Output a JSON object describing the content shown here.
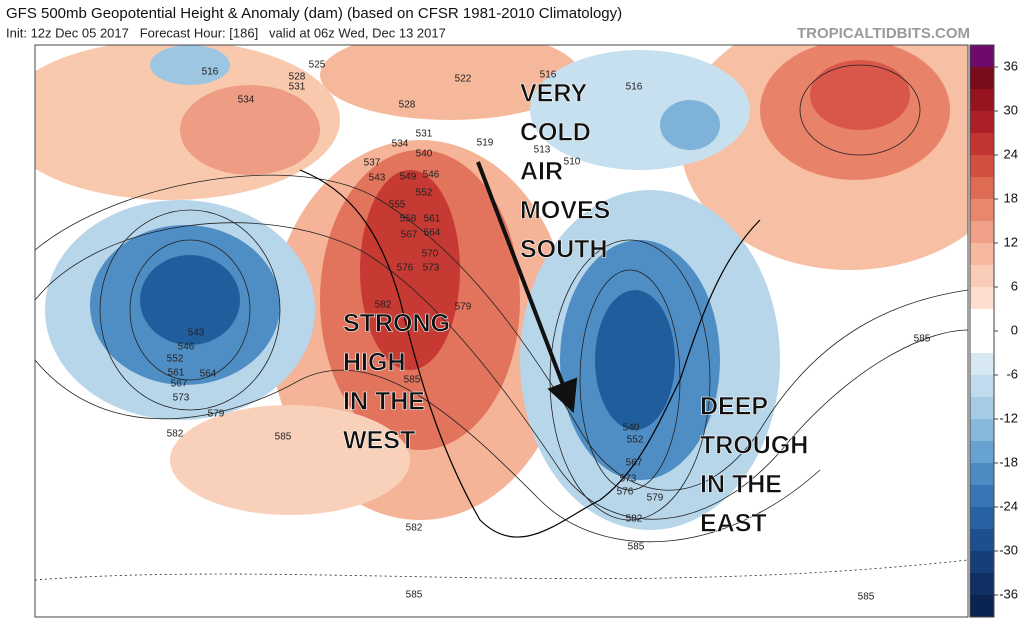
{
  "header": {
    "title": "GFS 500mb Geopotential Height & Anomaly (dam) (based on CFSR 1981-2010 Climatology)",
    "subtitle": "Init: 12z Dec 05 2017   Forecast Hour: [186]   valid at 06z Wed, Dec 13 2017",
    "site": "TROPICALTIDBITS.COM"
  },
  "annotations": [
    {
      "lines": [
        "VERY",
        "COLD",
        "AIR",
        "MOVES",
        "SOUTH"
      ]
    },
    {
      "lines": [
        "STRONG",
        "HIGH",
        "IN THE",
        "WEST"
      ]
    },
    {
      "lines": [
        "DEEP",
        "TROUGH",
        "IN THE",
        "EAST"
      ]
    }
  ],
  "contour_labels": [
    "516",
    "525",
    "528",
    "531",
    "534",
    "522",
    "516",
    "516",
    "528",
    "531",
    "534",
    "537",
    "540",
    "543",
    "546",
    "549",
    "552",
    "555",
    "558",
    "561",
    "564",
    "567",
    "570",
    "573",
    "576",
    "579",
    "582",
    "585",
    "543",
    "546",
    "552",
    "561",
    "564",
    "567",
    "573",
    "579",
    "582",
    "585",
    "585",
    "582",
    "582",
    "585",
    "585",
    "585",
    "519",
    "513",
    "510",
    "540",
    "552",
    "567",
    "573",
    "576",
    "579"
  ],
  "colorbar": {
    "ticks": [
      36,
      30,
      24,
      18,
      12,
      6,
      0,
      -6,
      -12,
      -18,
      -24,
      -30,
      -36
    ]
  }
}
